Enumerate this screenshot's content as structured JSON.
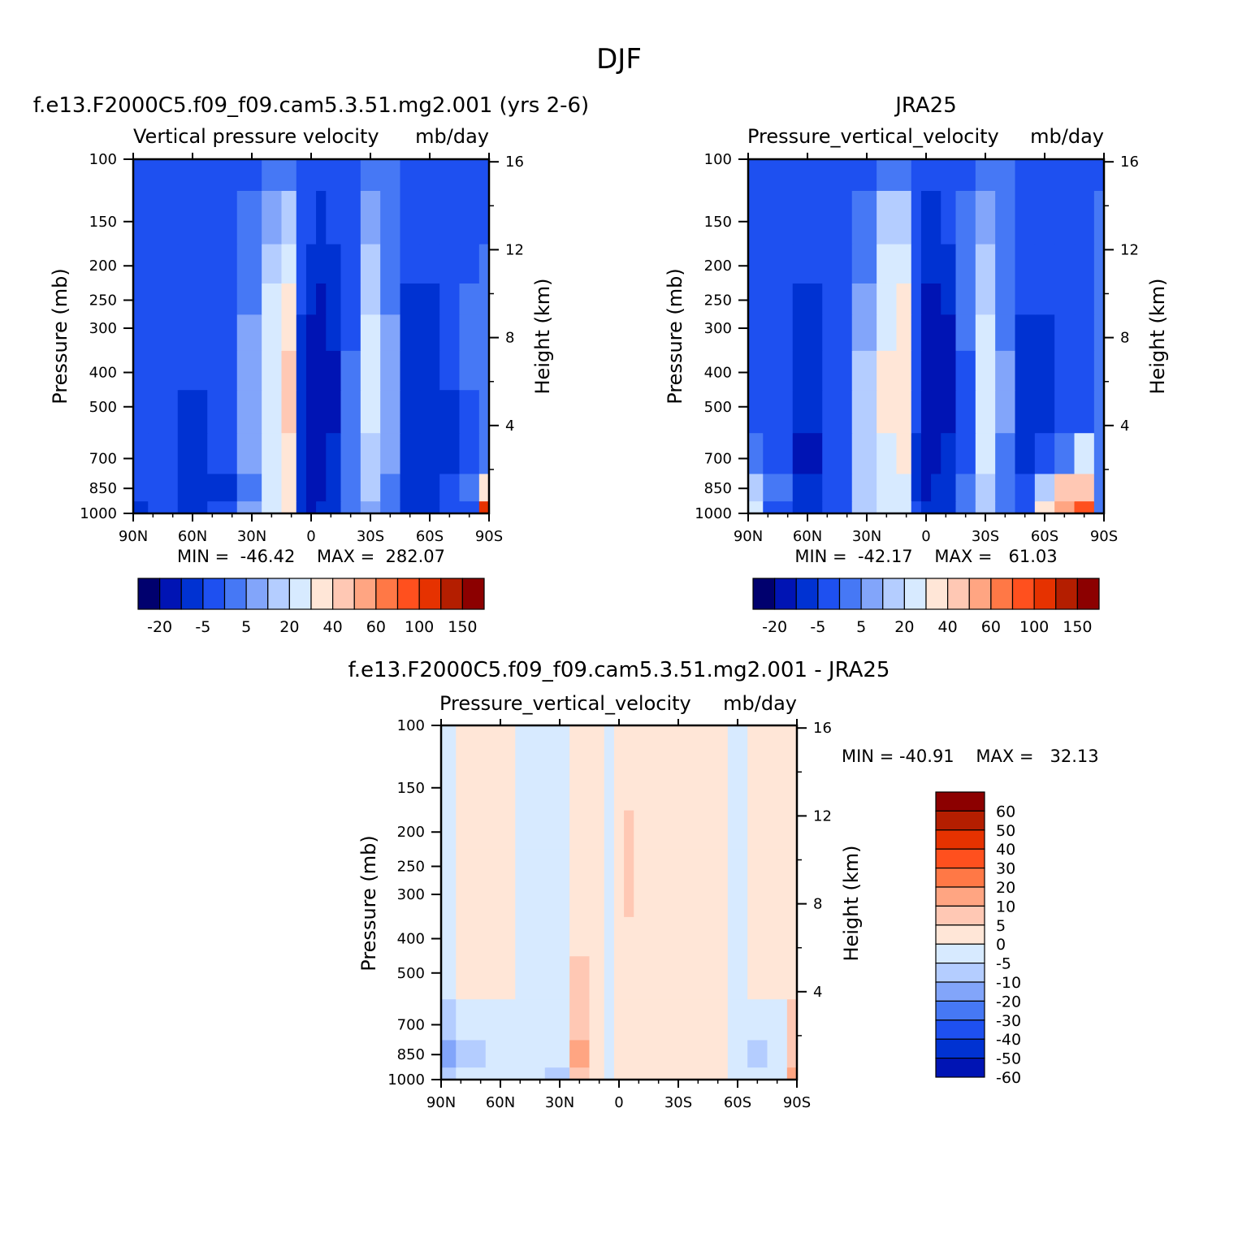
{
  "figure": {
    "title": "DJF"
  },
  "palettes": {
    "full": [
      "#00006e",
      "#0014b4",
      "#0032d2",
      "#1e50f0",
      "#4678f5",
      "#82a5fa",
      "#b4cdff",
      "#d7eaff",
      "#ffe6d7",
      "#ffc8b4",
      "#ffa582",
      "#ff7846",
      "#ff501e",
      "#e63200",
      "#b41e00",
      "#8c0000"
    ],
    "diff": [
      "#0014b4",
      "#0032d2",
      "#1e50f0",
      "#4678f5",
      "#82a5fa",
      "#b4cdff",
      "#d7eaff",
      "#ffe6d7",
      "#ffc8b4",
      "#ffa582",
      "#ff7846",
      "#ff501e",
      "#e63200",
      "#b41e00",
      "#8c0000"
    ]
  },
  "chart_data": [
    {
      "type": "heatmap",
      "title": "f.e13.F2000C5.f09_f09.cam5.3.51.mg2.001 (yrs 2-6)",
      "subtitle_left": "Vertical pressure velocity",
      "units": "mb/day",
      "ylabel": "Pressure (mb)",
      "ylabel_right": "Height (km)",
      "x_ticks": [
        "90N",
        "60N",
        "30N",
        "0",
        "30S",
        "60S",
        "90S"
      ],
      "y_ticks": [
        "100",
        "150",
        "200",
        "250",
        "300",
        "400",
        "500",
        "700",
        "850",
        "1000"
      ],
      "height_ticks": [
        "16",
        "12",
        "8",
        "4"
      ],
      "stats": "MIN =  -46.42    MAX =  282.07",
      "colorbar_labels": [
        "-20",
        "-5",
        "5",
        "20",
        "40",
        "60",
        "100",
        "150"
      ],
      "palette": "full",
      "x_values": [
        90,
        75,
        60,
        45,
        30,
        20,
        10,
        5,
        0,
        -5,
        -10,
        -20,
        -30,
        -40,
        -50,
        -60,
        -70,
        -80,
        -90
      ],
      "p_levels": [
        1000,
        850,
        700,
        500,
        400,
        300,
        250,
        200,
        150,
        100
      ],
      "values": [
        [
          -12,
          -10,
          -12,
          -10,
          0,
          10,
          20,
          -18,
          -22,
          -20,
          -18,
          -5,
          0,
          -5,
          -12,
          -15,
          -10,
          -8,
          80
        ],
        [
          -10,
          -8,
          -18,
          -12,
          -2,
          12,
          22,
          -20,
          -25,
          -22,
          -18,
          -5,
          5,
          -2,
          -14,
          -18,
          -10,
          -5,
          20
        ],
        [
          -8,
          -6,
          -15,
          -10,
          0,
          15,
          25,
          -18,
          -28,
          -25,
          -20,
          -5,
          8,
          0,
          -14,
          -20,
          -15,
          -8,
          -5
        ],
        [
          -8,
          -6,
          -12,
          -10,
          0,
          15,
          30,
          -15,
          -30,
          -30,
          -22,
          -5,
          10,
          0,
          -12,
          -18,
          -12,
          -6,
          -4
        ],
        [
          -7,
          -6,
          -10,
          -10,
          0,
          15,
          30,
          -15,
          -28,
          -35,
          -22,
          -5,
          12,
          2,
          -12,
          -16,
          -10,
          -5,
          -4
        ],
        [
          -6,
          -7,
          -9,
          -10,
          0,
          12,
          25,
          -12,
          -22,
          -30,
          -20,
          -6,
          10,
          0,
          -12,
          -15,
          -9,
          -5,
          -4
        ],
        [
          -6,
          -7,
          -9,
          -10,
          -2,
          10,
          20,
          -10,
          -18,
          -25,
          -18,
          -6,
          8,
          -2,
          -12,
          -12,
          -8,
          -5,
          -4
        ],
        [
          -6,
          -8,
          -9,
          -10,
          -3,
          8,
          15,
          -9,
          -15,
          -20,
          -15,
          -6,
          5,
          -3,
          -10,
          -10,
          -8,
          -6,
          -5
        ],
        [
          -7,
          -8,
          -8,
          -9,
          -4,
          4,
          8,
          -7,
          -10,
          -12,
          -10,
          -6,
          0,
          -4,
          -8,
          -8,
          -7,
          -7,
          -6
        ],
        [
          -8,
          -8,
          -8,
          -8,
          -6,
          -3,
          -2,
          -6,
          -8,
          -8,
          -8,
          -6,
          -3,
          -5,
          -7,
          -7,
          -7,
          -7,
          -7
        ]
      ]
    },
    {
      "type": "heatmap",
      "title": "JRA25",
      "subtitle_left": "Pressure_vertical_velocity",
      "units": "mb/day",
      "ylabel": "Pressure (mb)",
      "ylabel_right": "Height (km)",
      "x_ticks": [
        "90N",
        "60N",
        "30N",
        "0",
        "30S",
        "60S",
        "90S"
      ],
      "y_ticks": [
        "100",
        "150",
        "200",
        "250",
        "300",
        "400",
        "500",
        "700",
        "850",
        "1000"
      ],
      "height_ticks": [
        "16",
        "12",
        "8",
        "4"
      ],
      "stats": "MIN =  -42.17    MAX =   61.03",
      "colorbar_labels": [
        "-20",
        "-5",
        "5",
        "20",
        "40",
        "60",
        "100",
        "150"
      ],
      "palette": "full",
      "x_values": [
        90,
        75,
        60,
        45,
        30,
        20,
        10,
        5,
        0,
        -5,
        -10,
        -20,
        -30,
        -40,
        -50,
        -60,
        -70,
        -80,
        -90
      ],
      "p_levels": [
        1000,
        850,
        700,
        500,
        400,
        300,
        250,
        200,
        150,
        100
      ],
      "values": [
        [
          10,
          -8,
          -18,
          -10,
          5,
          15,
          15,
          -10,
          -20,
          -15,
          -12,
          -5,
          5,
          -5,
          -8,
          20,
          45,
          60,
          -5
        ],
        [
          5,
          -5,
          -20,
          -8,
          8,
          18,
          18,
          -15,
          -28,
          -20,
          -15,
          -5,
          8,
          -3,
          -10,
          5,
          30,
          35,
          -5
        ],
        [
          -5,
          -8,
          -22,
          -10,
          5,
          18,
          20,
          -12,
          -25,
          -22,
          -18,
          -6,
          10,
          -2,
          -12,
          -10,
          -5,
          10,
          -5
        ],
        [
          -6,
          -10,
          -18,
          -8,
          5,
          20,
          25,
          -10,
          -28,
          -32,
          -25,
          -6,
          12,
          0,
          -12,
          -14,
          -8,
          -6,
          -5
        ],
        [
          -6,
          -10,
          -16,
          -8,
          5,
          20,
          28,
          -10,
          -28,
          -38,
          -28,
          -6,
          12,
          0,
          -12,
          -14,
          -8,
          -6,
          -5
        ],
        [
          -6,
          -9,
          -14,
          -8,
          2,
          18,
          25,
          -10,
          -25,
          -32,
          -22,
          -5,
          10,
          -2,
          -12,
          -12,
          -8,
          -6,
          -5
        ],
        [
          -6,
          -8,
          -12,
          -8,
          0,
          15,
          20,
          -10,
          -22,
          -25,
          -20,
          -5,
          8,
          -2,
          -10,
          -10,
          -8,
          -6,
          -5
        ],
        [
          -6,
          -8,
          -10,
          -8,
          -2,
          10,
          15,
          -8,
          -18,
          -20,
          -15,
          -5,
          5,
          -3,
          -10,
          -9,
          -8,
          -6,
          -5
        ],
        [
          -7,
          -8,
          -8,
          -8,
          -3,
          5,
          8,
          -6,
          -12,
          -12,
          -10,
          -5,
          0,
          -4,
          -8,
          -8,
          -7,
          -6,
          -5
        ],
        [
          -8,
          -8,
          -8,
          -8,
          -6,
          -3,
          -3,
          -6,
          -8,
          -8,
          -8,
          -6,
          -3,
          -5,
          -7,
          -7,
          -7,
          -6,
          -6
        ]
      ]
    },
    {
      "type": "heatmap",
      "title": "f.e13.F2000C5.f09_f09.cam5.3.51.mg2.001 - JRA25",
      "subtitle_left": "Pressure_vertical_velocity",
      "units": "mb/day",
      "ylabel": "Pressure (mb)",
      "ylabel_right": "Height (km)",
      "x_ticks": [
        "90N",
        "60N",
        "30N",
        "0",
        "30S",
        "60S",
        "90S"
      ],
      "y_ticks": [
        "100",
        "150",
        "200",
        "250",
        "300",
        "400",
        "500",
        "700",
        "850",
        "1000"
      ],
      "height_ticks": [
        "16",
        "12",
        "8",
        "4"
      ],
      "stats": "MIN = -40.91    MAX =   32.13",
      "colorbar_labels": [
        "60",
        "50",
        "40",
        "30",
        "20",
        "10",
        "5",
        "0",
        "-5",
        "-10",
        "-20",
        "-30",
        "-40",
        "-50",
        "-60"
      ],
      "palette": "diff",
      "x_values": [
        90,
        75,
        60,
        45,
        30,
        20,
        10,
        5,
        0,
        -5,
        -10,
        -20,
        -30,
        -40,
        -50,
        -60,
        -70,
        -80,
        -90
      ],
      "p_levels": [
        1000,
        850,
        700,
        500,
        400,
        300,
        250,
        200,
        150,
        100
      ],
      "values": [
        [
          -8,
          -5,
          -3,
          -3,
          -6,
          5,
          3,
          -3,
          3,
          2,
          2,
          2,
          3,
          1,
          1,
          -1,
          -2,
          -1,
          10
        ],
        [
          -12,
          -6,
          -4,
          -5,
          -5,
          10,
          4,
          -5,
          4,
          3,
          2,
          2,
          2,
          1,
          1,
          -2,
          -8,
          -4,
          8
        ],
        [
          -6,
          -4,
          -3,
          -2,
          -3,
          8,
          3,
          -3,
          3,
          3,
          2,
          1,
          1,
          1,
          1,
          -2,
          -3,
          -2,
          6
        ],
        [
          -2,
          1,
          2,
          -3,
          -5,
          6,
          4,
          -2,
          3,
          3,
          2,
          1,
          2,
          1,
          0,
          -2,
          1,
          1,
          3
        ],
        [
          -1,
          1,
          2,
          -2,
          -4,
          3,
          3,
          -1,
          3,
          4,
          2,
          1,
          2,
          1,
          0,
          -1,
          1,
          2,
          2
        ],
        [
          -1,
          1,
          2,
          -1,
          -2,
          3,
          3,
          -1,
          4,
          5,
          3,
          1,
          2,
          1,
          0,
          -1,
          1,
          2,
          2
        ],
        [
          -1,
          1,
          2,
          -1,
          -2,
          2,
          2,
          -1,
          4,
          6,
          3,
          1,
          2,
          1,
          0,
          -1,
          1,
          2,
          2
        ],
        [
          -1,
          1,
          1,
          -1,
          -1,
          2,
          2,
          -1,
          3,
          5,
          2,
          1,
          2,
          1,
          0,
          -1,
          1,
          2,
          1
        ],
        [
          -1,
          1,
          1,
          -1,
          -1,
          2,
          2,
          -1,
          3,
          3,
          2,
          1,
          2,
          1,
          0,
          -1,
          1,
          2,
          1
        ],
        [
          -1,
          1,
          1,
          -1,
          -1,
          1,
          1,
          -1,
          2,
          2,
          2,
          1,
          2,
          1,
          0,
          -1,
          1,
          2,
          1
        ]
      ]
    }
  ]
}
